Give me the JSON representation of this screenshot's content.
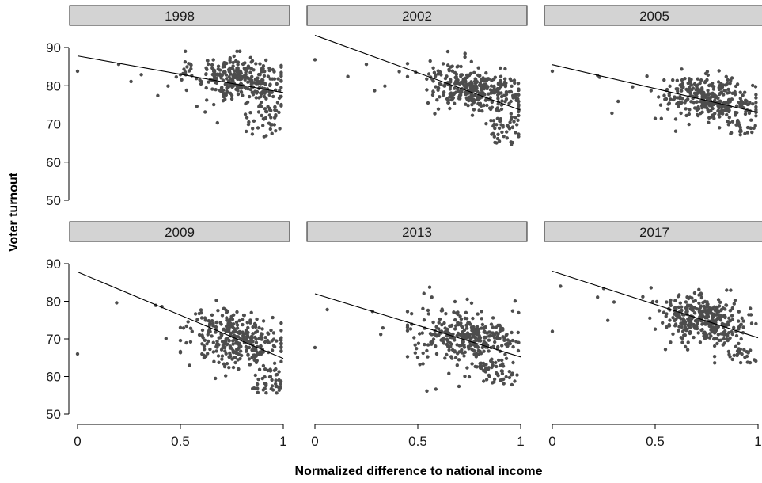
{
  "chart_data": {
    "type": "scatter",
    "xlabel": "Normalized difference to national income",
    "ylabel": "Voter turnout",
    "xlim": [
      0,
      1
    ],
    "ylim": [
      50,
      90
    ],
    "x_ticks": [
      "0",
      "0.5",
      "1"
    ],
    "y_ticks": [
      "50",
      "60",
      "70",
      "80",
      "90"
    ],
    "point_color": "#4d4d4d",
    "strip_color": "#d3d3d3",
    "facets": [
      {
        "title": "1998",
        "trend": [
          [
            0,
            87.8
          ],
          [
            1,
            78.2
          ]
        ],
        "cloud": {
          "center": [
            0.79,
            81.8
          ],
          "n": 320,
          "sx": 0.11,
          "sy": 3.0,
          "xmin": 0.5,
          "xmax": 0.99,
          "tail": [
            0.8,
            0.99,
            66.5,
            75.0,
            45
          ]
        },
        "points": [
          [
            0,
            83.8
          ],
          [
            0.2,
            85.6
          ],
          [
            0.26,
            81.1
          ],
          [
            0.31,
            82.9
          ],
          [
            0.39,
            77.4
          ],
          [
            0.44,
            79.9
          ],
          [
            0.48,
            82.3
          ],
          [
            0.54,
            85.8
          ],
          [
            0.53,
            78.8
          ],
          [
            0.58,
            74.6
          ],
          [
            0.62,
            73.1
          ],
          [
            0.68,
            70.3
          ]
        ]
      },
      {
        "title": "2002",
        "trend": [
          [
            0,
            93.2
          ],
          [
            1,
            73.6
          ]
        ],
        "cloud": {
          "center": [
            0.78,
            79.2
          ],
          "n": 330,
          "sx": 0.11,
          "sy": 3.0,
          "xmin": 0.45,
          "xmax": 0.99,
          "tail": [
            0.85,
            0.99,
            64.5,
            72.0,
            45
          ]
        },
        "points": [
          [
            0,
            86.8
          ],
          [
            0.16,
            82.4
          ],
          [
            0.25,
            85.6
          ],
          [
            0.29,
            78.7
          ],
          [
            0.34,
            79.9
          ],
          [
            0.41,
            83.7
          ],
          [
            0.45,
            85.8
          ],
          [
            0.49,
            83.5
          ],
          [
            0.55,
            75.5
          ],
          [
            0.6,
            73.9
          ]
        ]
      },
      {
        "title": "2005",
        "trend": [
          [
            0,
            85.5
          ],
          [
            1,
            73.0
          ]
        ],
        "cloud": {
          "center": [
            0.77,
            76.6
          ],
          "n": 320,
          "sx": 0.11,
          "sy": 2.7,
          "xmin": 0.48,
          "xmax": 0.99,
          "tail": [
            0.85,
            0.99,
            66.8,
            71.0,
            25
          ]
        },
        "points": [
          [
            0,
            83.8
          ],
          [
            0.22,
            82.7
          ],
          [
            0.23,
            82.2
          ],
          [
            0.29,
            72.8
          ],
          [
            0.32,
            75.9
          ],
          [
            0.39,
            79.7
          ],
          [
            0.46,
            82.5
          ],
          [
            0.48,
            78.7
          ],
          [
            0.5,
            71.4
          ],
          [
            0.53,
            71.4
          ],
          [
            0.6,
            68.1
          ]
        ]
      },
      {
        "title": "2009",
        "trend": [
          [
            0,
            87.8
          ],
          [
            1,
            64.8
          ]
        ],
        "cloud": {
          "center": [
            0.78,
            70.0
          ],
          "n": 330,
          "sx": 0.11,
          "sy": 3.6,
          "xmin": 0.5,
          "xmax": 0.99,
          "tail": [
            0.85,
            0.99,
            55.5,
            62.0,
            40
          ]
        },
        "points": [
          [
            0,
            66.0
          ],
          [
            0.19,
            79.6
          ],
          [
            0.38,
            78.9
          ],
          [
            0.41,
            78.6
          ],
          [
            0.43,
            70.1
          ],
          [
            0.5,
            73.0
          ],
          [
            0.55,
            72.8
          ],
          [
            0.6,
            77.7
          ],
          [
            0.67,
            59.5
          ],
          [
            0.72,
            60.2
          ]
        ]
      },
      {
        "title": "2013",
        "trend": [
          [
            0,
            82.0
          ],
          [
            1,
            65.2
          ]
        ],
        "cloud": {
          "center": [
            0.74,
            70.3
          ],
          "n": 330,
          "sx": 0.12,
          "sy": 3.8,
          "xmin": 0.45,
          "xmax": 0.99,
          "tail": [
            0.8,
            0.99,
            57.5,
            64.0,
            40
          ]
        },
        "points": [
          [
            0,
            67.7
          ],
          [
            0.06,
            77.8
          ],
          [
            0.28,
            77.3
          ],
          [
            0.32,
            71.2
          ],
          [
            0.33,
            72.9
          ],
          [
            0.47,
            76.7
          ],
          [
            0.5,
            65.1
          ],
          [
            0.51,
            63.2
          ],
          [
            0.55,
            77.6
          ],
          [
            0.7,
            57.4
          ],
          [
            0.75,
            59.9
          ]
        ]
      },
      {
        "title": "2017",
        "trend": [
          [
            0,
            88.0
          ],
          [
            1,
            70.3
          ]
        ],
        "cloud": {
          "center": [
            0.73,
            75.0
          ],
          "n": 340,
          "sx": 0.11,
          "sy": 3.4,
          "xmin": 0.45,
          "xmax": 0.99,
          "tail": [
            0.85,
            0.99,
            63.5,
            68.0,
            25
          ]
        },
        "points": [
          [
            0,
            72.0
          ],
          [
            0.04,
            84.0
          ],
          [
            0.22,
            81.1
          ],
          [
            0.25,
            83.4
          ],
          [
            0.27,
            74.9
          ],
          [
            0.3,
            79.8
          ],
          [
            0.44,
            81.2
          ],
          [
            0.48,
            83.6
          ],
          [
            0.5,
            72.6
          ],
          [
            0.55,
            67.2
          ]
        ]
      }
    ]
  }
}
